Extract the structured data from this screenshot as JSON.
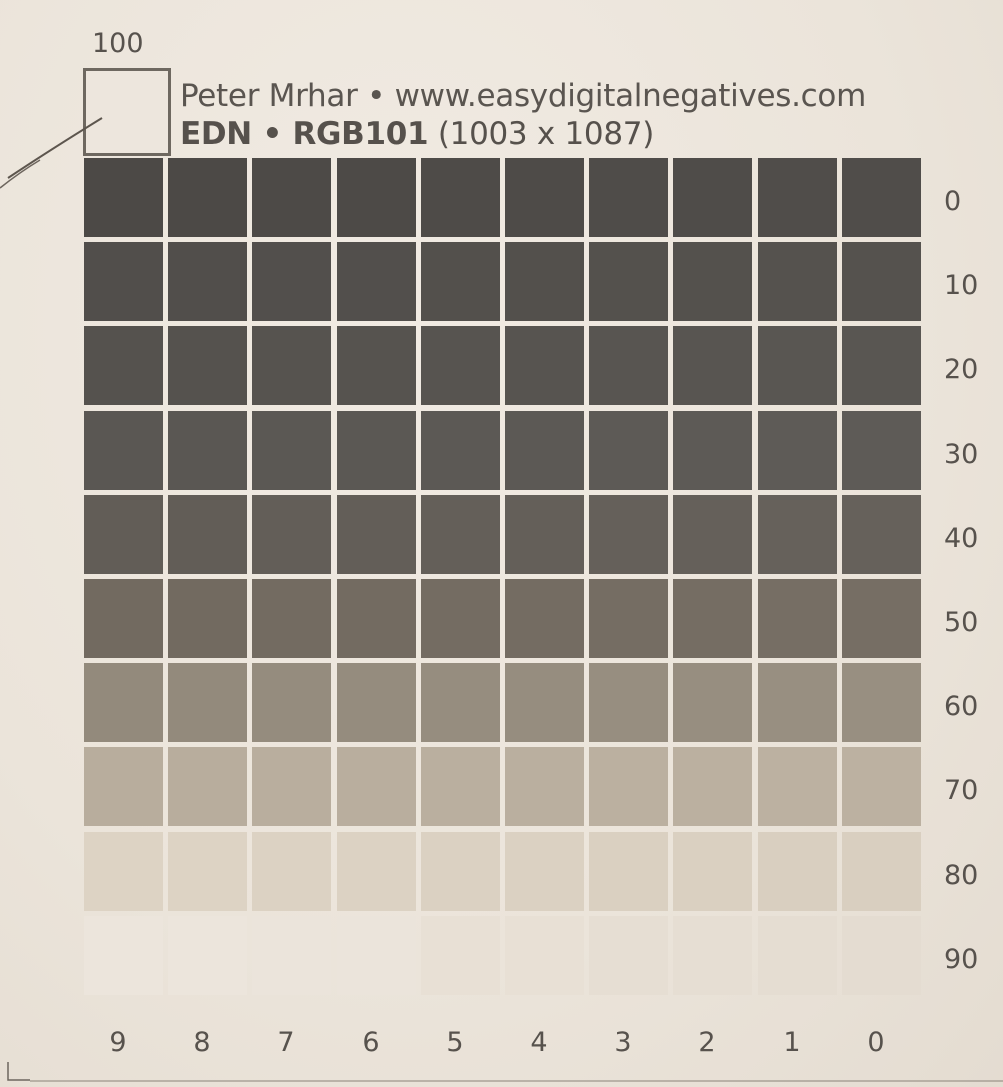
{
  "corner_label": "100",
  "author_line": "Peter Mrhar • www.easydigitalnegatives.com",
  "title": {
    "bold_part": "EDN • RGB101",
    "regular_part": " (1003 x 1087)"
  },
  "row_labels": [
    "0",
    "10",
    "20",
    "30",
    "40",
    "50",
    "60",
    "70",
    "80",
    "90"
  ],
  "column_labels": [
    "9",
    "8",
    "7",
    "6",
    "5",
    "4",
    "3",
    "2",
    "1",
    "0"
  ],
  "colors": {
    "paper": "#ece5dc",
    "ink": "#57524d",
    "row_tones": [
      [
        "#4c4946",
        "#4c4946",
        "#4d4a47",
        "#4d4a47",
        "#4e4b48",
        "#4e4b48",
        "#4f4c49",
        "#4f4c49",
        "#504d4a",
        "#504d4a"
      ],
      [
        "#514e4b",
        "#514e4b",
        "#524f4c",
        "#524f4c",
        "#53504c",
        "#53504c",
        "#54514d",
        "#54514d",
        "#55524e",
        "#55524e"
      ],
      [
        "#55524e",
        "#55524e",
        "#56534f",
        "#56534f",
        "#575450",
        "#575450",
        "#585551",
        "#585551",
        "#595652",
        "#595652"
      ],
      [
        "#5a5753",
        "#5a5753",
        "#5b5854",
        "#5b5854",
        "#5c5955",
        "#5c5955",
        "#5d5a56",
        "#5d5a56",
        "#5e5b57",
        "#5e5b57"
      ],
      [
        "#625d57",
        "#625d57",
        "#635e58",
        "#635e58",
        "#645f59",
        "#645f59",
        "#65605a",
        "#65605a",
        "#66615b",
        "#66615b"
      ],
      [
        "#726a60",
        "#726a60",
        "#736b61",
        "#736b61",
        "#746c62",
        "#746c62",
        "#756d63",
        "#756d63",
        "#766e64",
        "#766e64"
      ],
      [
        "#938a7c",
        "#938a7c",
        "#958c7e",
        "#958c7e",
        "#968d7f",
        "#968d7f",
        "#978e80",
        "#978e80",
        "#988f81",
        "#988f81"
      ],
      [
        "#b8ad9d",
        "#b8ad9d",
        "#b9ae9e",
        "#b9ae9e",
        "#baaf9f",
        "#baaf9f",
        "#bbb0a0",
        "#bbb0a0",
        "#bcb1a1",
        "#bcb1a1"
      ],
      [
        "#ddd3c4",
        "#ddd3c4",
        "#dcd2c3",
        "#dcd2c3",
        "#dbd1c2",
        "#dbd1c2",
        "#dad0c1",
        "#dad0c1",
        "#d9cfc0",
        "#d9cfc0"
      ],
      [
        "#ece5dc",
        "#ece5dc",
        "#ebe4db",
        "#ebe4db",
        "#e8e0d5",
        "#e8e0d5",
        "#e6ded3",
        "#e6ded3",
        "#e5ddd2",
        "#e4dcd1"
      ]
    ]
  }
}
